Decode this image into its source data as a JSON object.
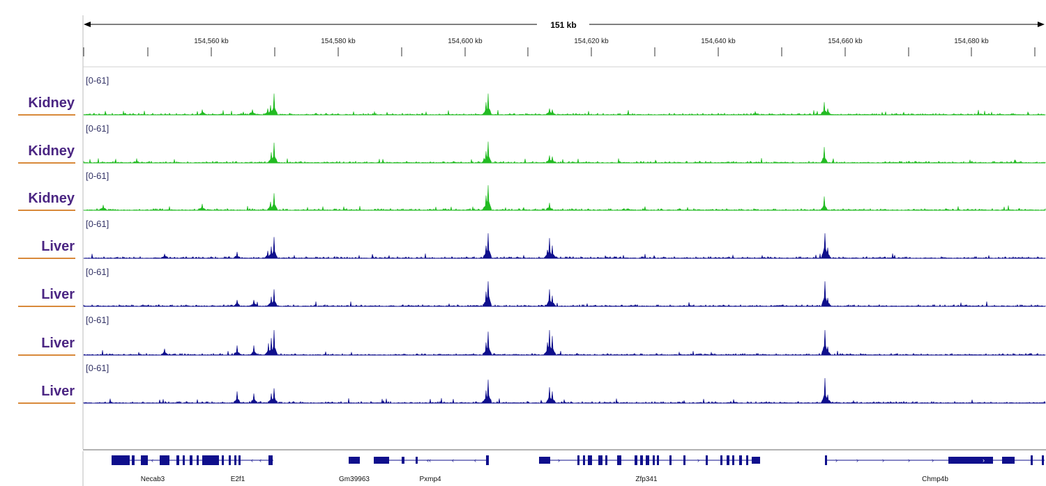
{
  "ruler": {
    "span_label": "151 kb",
    "ticks": [
      "154,560 kb",
      "154,580 kb",
      "154,600 kb",
      "154,620 kb",
      "154,640 kb",
      "154,660 kb",
      "154,680 kb"
    ]
  },
  "tracks": [
    {
      "label": "Kidney",
      "range": "[0-61]",
      "color": "#22bb22"
    },
    {
      "label": "Kidney",
      "range": "[0-61]",
      "color": "#22bb22"
    },
    {
      "label": "Kidney",
      "range": "[0-61]",
      "color": "#22bb22"
    },
    {
      "label": "Liver",
      "range": "[0-61]",
      "color": "#0f0f8c"
    },
    {
      "label": "Liver",
      "range": "[0-61]",
      "color": "#0f0f8c"
    },
    {
      "label": "Liver",
      "range": "[0-61]",
      "color": "#0f0f8c"
    },
    {
      "label": "Liver",
      "range": "[0-61]",
      "color": "#0f0f8c"
    }
  ],
  "genes": [
    "Necab3",
    "E2f1",
    "Gm39963",
    "Pxmp4",
    "Zfp341",
    "Chmp4b"
  ],
  "colors": {
    "label_text": "#4b2683",
    "label_underline": "#d8893a",
    "gene_feature": "#0f0f8c"
  }
}
